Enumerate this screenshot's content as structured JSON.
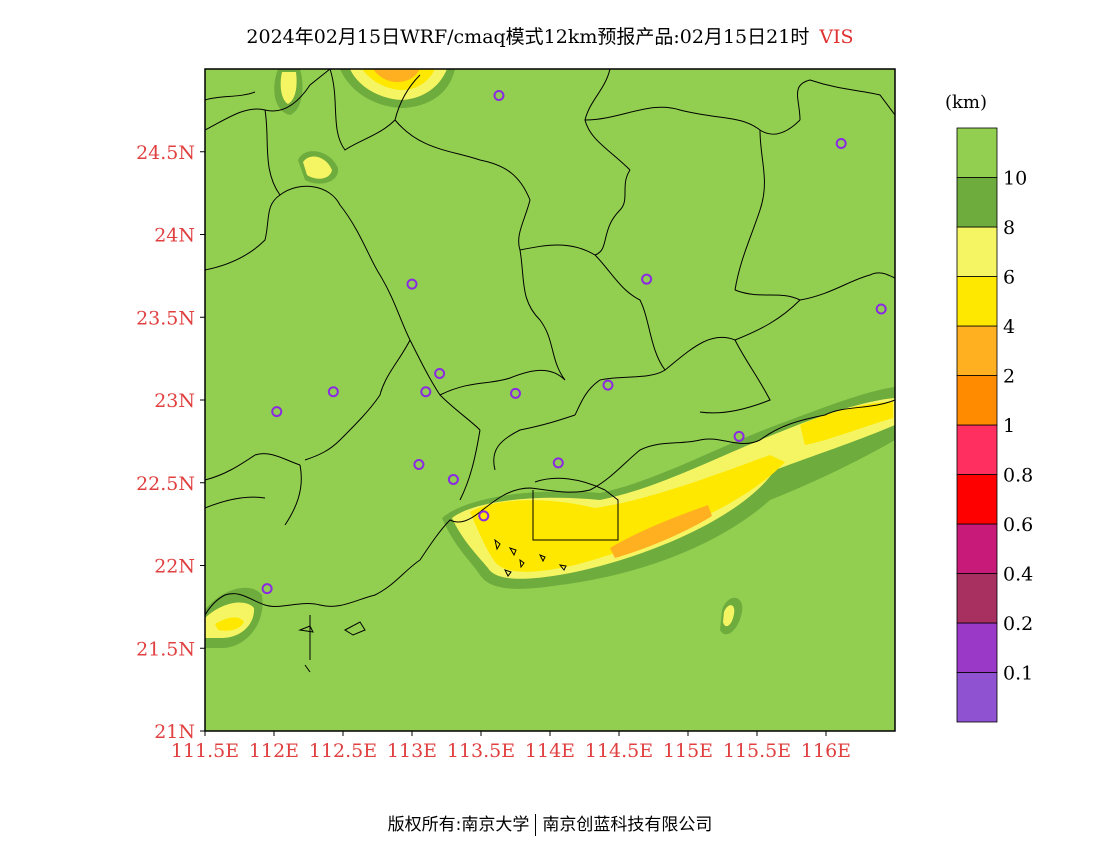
{
  "title": {
    "main": "2024年02月15日WRF/cmaq模式12km预报产品:02月15日21时",
    "variable": "VIS"
  },
  "map": {
    "lon_range": [
      111.5,
      116.5
    ],
    "lat_range": [
      21.0,
      25.0
    ],
    "x_ticks": [
      {
        "lon": 111.5,
        "label": "111.5E"
      },
      {
        "lon": 112.0,
        "label": "112E"
      },
      {
        "lon": 112.5,
        "label": "112.5E"
      },
      {
        "lon": 113.0,
        "label": "113E"
      },
      {
        "lon": 113.5,
        "label": "113.5E"
      },
      {
        "lon": 114.0,
        "label": "114E"
      },
      {
        "lon": 114.5,
        "label": "114.5E"
      },
      {
        "lon": 115.0,
        "label": "115E"
      },
      {
        "lon": 115.5,
        "label": "115.5E"
      },
      {
        "lon": 116.0,
        "label": "116E"
      }
    ],
    "y_ticks": [
      {
        "lat": 21.0,
        "label": "21N"
      },
      {
        "lat": 21.5,
        "label": "21.5N"
      },
      {
        "lat": 22.0,
        "label": "22N"
      },
      {
        "lat": 22.5,
        "label": "22.5N"
      },
      {
        "lat": 23.0,
        "label": "23N"
      },
      {
        "lat": 23.5,
        "label": "23.5N"
      },
      {
        "lat": 24.0,
        "label": "24N"
      },
      {
        "lat": 24.5,
        "label": "24.5N"
      }
    ],
    "tick_color": "#e04040",
    "background_color": "#92cf50",
    "stations": [
      {
        "lon": 113.63,
        "lat": 24.84
      },
      {
        "lon": 116.11,
        "lat": 24.55
      },
      {
        "lon": 113.0,
        "lat": 23.7
      },
      {
        "lon": 114.7,
        "lat": 23.73
      },
      {
        "lon": 116.4,
        "lat": 23.55
      },
      {
        "lon": 113.2,
        "lat": 23.16
      },
      {
        "lon": 113.1,
        "lat": 23.05
      },
      {
        "lon": 112.43,
        "lat": 23.05
      },
      {
        "lon": 113.75,
        "lat": 23.04
      },
      {
        "lon": 114.42,
        "lat": 23.09
      },
      {
        "lon": 112.02,
        "lat": 22.93
      },
      {
        "lon": 115.37,
        "lat": 22.78
      },
      {
        "lon": 113.05,
        "lat": 22.61
      },
      {
        "lon": 114.06,
        "lat": 22.62
      },
      {
        "lon": 113.3,
        "lat": 22.52
      },
      {
        "lon": 113.52,
        "lat": 22.3
      },
      {
        "lon": 111.95,
        "lat": 21.86
      }
    ]
  },
  "colorbar": {
    "unit": "(km)",
    "bands": [
      {
        "color": "#8f52d0",
        "label": "0.1"
      },
      {
        "color": "#9a38c8",
        "label": "0.2"
      },
      {
        "color": "#a83060",
        "label": "0.4"
      },
      {
        "color": "#c81a78",
        "label": "0.6"
      },
      {
        "color": "#ff0000",
        "label": "0.8"
      },
      {
        "color": "#ff3060",
        "label": "1"
      },
      {
        "color": "#ff8c00",
        "label": "2"
      },
      {
        "color": "#ffb020",
        "label": "4"
      },
      {
        "color": "#ffe800",
        "label": "6"
      },
      {
        "color": "#f5f564",
        "label": "8"
      },
      {
        "color": "#6eac3e",
        "label": "10"
      },
      {
        "color": "#92cf50",
        "label": ""
      }
    ]
  },
  "footer": {
    "left": "版权所有:南京大学",
    "right": "南京创蓝科技有限公司"
  }
}
